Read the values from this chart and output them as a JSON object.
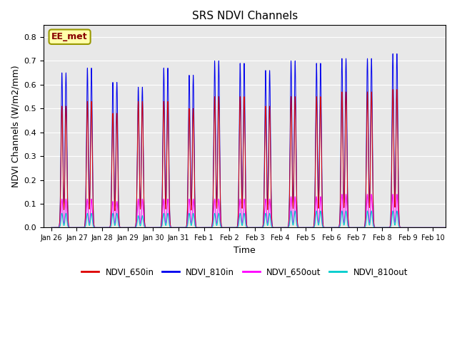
{
  "title": "SRS NDVI Channels",
  "xlabel": "Time",
  "ylabel": "NDVI Channels (W/m2/mm)",
  "ylim": [
    0.0,
    0.85
  ],
  "yticks": [
    0.0,
    0.1,
    0.2,
    0.3,
    0.4,
    0.5,
    0.6,
    0.7,
    0.8
  ],
  "colors": {
    "NDVI_650in": "#dd0000",
    "NDVI_810in": "#0000ee",
    "NDVI_650out": "#ff00ff",
    "NDVI_810out": "#00cccc"
  },
  "annotation": "EE_met",
  "bg_color": "#e8e8e8",
  "xtick_labels": [
    "Jan 26",
    "Jan 27",
    "Jan 28",
    "Jan 29",
    "Jan 30",
    "Jan 31",
    "Feb 1",
    "Feb 2",
    "Feb 3",
    "Feb 4",
    "Feb 5",
    "Feb 6",
    "Feb 7",
    "Feb 8",
    "Feb 9",
    "Feb 10"
  ],
  "peak_810in": [
    0.65,
    0.67,
    0.61,
    0.59,
    0.67,
    0.64,
    0.7,
    0.69,
    0.66,
    0.7,
    0.69,
    0.71,
    0.71,
    0.73
  ],
  "peak_650in": [
    0.51,
    0.53,
    0.48,
    0.53,
    0.53,
    0.5,
    0.55,
    0.55,
    0.51,
    0.55,
    0.55,
    0.57,
    0.57,
    0.58
  ],
  "peak_650out": [
    0.12,
    0.12,
    0.11,
    0.12,
    0.12,
    0.12,
    0.12,
    0.12,
    0.12,
    0.13,
    0.13,
    0.14,
    0.14,
    0.14
  ],
  "peak_810out": [
    0.06,
    0.06,
    0.06,
    0.05,
    0.06,
    0.06,
    0.06,
    0.06,
    0.06,
    0.07,
    0.07,
    0.07,
    0.07,
    0.07
  ],
  "num_days": 14,
  "pulse_sigma": 0.035
}
